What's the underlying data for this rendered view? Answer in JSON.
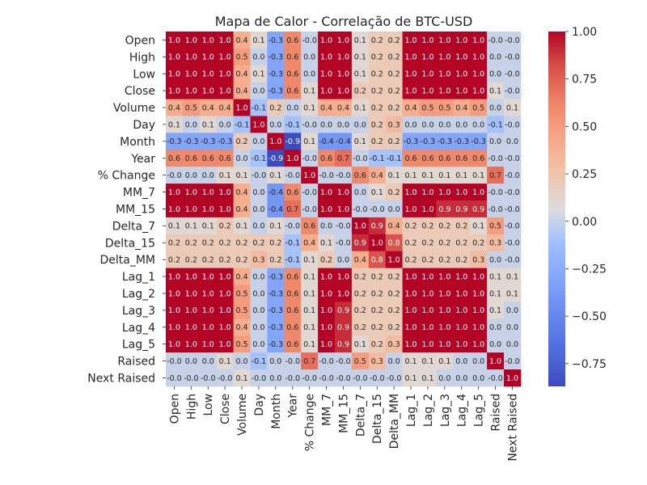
{
  "chart_data": {
    "type": "heatmap",
    "title": "Mapa de Calor - Correlação de BTC-USD",
    "xlabel": "",
    "ylabel": "",
    "labels": [
      "Open",
      "High",
      "Low",
      "Close",
      "Volume",
      "Day",
      "Month",
      "Year",
      "% Change",
      "MM_7",
      "MM_15",
      "Delta_7",
      "Delta_15",
      "Delta_MM",
      "Lag_1",
      "Lag_2",
      "Lag_3",
      "Lag_4",
      "Lag_5",
      "Raised",
      "Next Raised"
    ],
    "values": [
      [
        "1.0",
        "1.0",
        "1.0",
        "1.0",
        "0.4",
        "0.1",
        "-0.3",
        "0.6",
        "-0.0",
        "1.0",
        "1.0",
        "0.1",
        "0.2",
        "0.2",
        "1.0",
        "1.0",
        "1.0",
        "1.0",
        "1.0",
        "-0.0",
        "-0.0"
      ],
      [
        "1.0",
        "1.0",
        "1.0",
        "1.0",
        "0.5",
        "0.0",
        "-0.3",
        "0.6",
        "0.0",
        "1.0",
        "1.0",
        "0.1",
        "0.2",
        "0.2",
        "1.0",
        "1.0",
        "1.0",
        "1.0",
        "1.0",
        "0.0",
        "-0.0"
      ],
      [
        "1.0",
        "1.0",
        "1.0",
        "1.0",
        "0.4",
        "0.1",
        "-0.3",
        "0.6",
        "0.0",
        "1.0",
        "1.0",
        "0.1",
        "0.2",
        "0.2",
        "1.0",
        "1.0",
        "1.0",
        "1.0",
        "1.0",
        "0.0",
        "-0.0"
      ],
      [
        "1.0",
        "1.0",
        "1.0",
        "1.0",
        "0.4",
        "0.0",
        "-0.3",
        "0.6",
        "0.1",
        "1.0",
        "1.0",
        "0.2",
        "0.2",
        "0.2",
        "1.0",
        "1.0",
        "1.0",
        "1.0",
        "1.0",
        "0.1",
        "-0.0"
      ],
      [
        "0.4",
        "0.5",
        "0.4",
        "0.4",
        "1.0",
        "-0.1",
        "0.2",
        "0.0",
        "0.1",
        "0.4",
        "0.4",
        "0.1",
        "0.2",
        "0.2",
        "0.4",
        "0.5",
        "0.5",
        "0.4",
        "0.5",
        "0.0",
        "0.1"
      ],
      [
        "0.1",
        "0.0",
        "0.1",
        "0.0",
        "-0.1",
        "1.0",
        "0.0",
        "-0.1",
        "-0.0",
        "0.0",
        "0.0",
        "0.0",
        "0.2",
        "0.3",
        "0.0",
        "0.0",
        "0.0",
        "0.0",
        "0.0",
        "-0.1",
        "-0.0"
      ],
      [
        "-0.3",
        "-0.3",
        "-0.3",
        "-0.3",
        "0.2",
        "0.0",
        "1.0",
        "-0.9",
        "0.1",
        "-0.4",
        "-0.4",
        "0.1",
        "0.2",
        "0.2",
        "-0.3",
        "-0.3",
        "-0.3",
        "-0.3",
        "-0.3",
        "0.0",
        "0.0"
      ],
      [
        "0.6",
        "0.6",
        "0.6",
        "0.6",
        "0.0",
        "-0.1",
        "-0.9",
        "1.0",
        "-0.0",
        "0.6",
        "0.7",
        "-0.0",
        "-0.1",
        "-0.1",
        "0.6",
        "0.6",
        "0.6",
        "0.6",
        "0.6",
        "-0.0",
        "-0.0"
      ],
      [
        "-0.0",
        "0.0",
        "0.0",
        "0.1",
        "0.1",
        "-0.0",
        "0.1",
        "-0.0",
        "1.0",
        "-0.0",
        "-0.0",
        "0.6",
        "0.4",
        "0.1",
        "0.1",
        "0.1",
        "0.1",
        "0.1",
        "0.1",
        "0.7",
        "-0.0"
      ],
      [
        "1.0",
        "1.0",
        "1.0",
        "1.0",
        "0.4",
        "0.0",
        "-0.4",
        "0.6",
        "-0.0",
        "1.0",
        "1.0",
        "0.0",
        "0.1",
        "0.2",
        "1.0",
        "1.0",
        "1.0",
        "1.0",
        "1.0",
        "-0.0",
        "-0.0"
      ],
      [
        "1.0",
        "1.0",
        "1.0",
        "1.0",
        "0.4",
        "0.0",
        "-0.4",
        "0.7",
        "-0.0",
        "1.0",
        "1.0",
        "-0.0",
        "-0.0",
        "0.0",
        "1.0",
        "1.0",
        "0.9",
        "0.9",
        "0.9",
        "-0.0",
        "-0.0"
      ],
      [
        "0.1",
        "0.1",
        "0.1",
        "0.2",
        "0.1",
        "0.0",
        "0.1",
        "-0.0",
        "0.6",
        "0.0",
        "-0.0",
        "1.0",
        "0.9",
        "0.4",
        "0.2",
        "0.2",
        "0.2",
        "0.2",
        "0.1",
        "0.5",
        "-0.0"
      ],
      [
        "0.2",
        "0.2",
        "0.2",
        "0.2",
        "0.2",
        "0.2",
        "0.2",
        "-0.1",
        "0.4",
        "0.1",
        "-0.0",
        "0.9",
        "1.0",
        "0.8",
        "0.2",
        "0.2",
        "0.2",
        "0.2",
        "0.2",
        "0.3",
        "-0.0"
      ],
      [
        "0.2",
        "0.2",
        "0.2",
        "0.2",
        "0.2",
        "0.3",
        "0.2",
        "-0.1",
        "0.1",
        "0.2",
        "0.0",
        "0.4",
        "0.8",
        "1.0",
        "0.2",
        "0.2",
        "0.2",
        "0.2",
        "0.3",
        "0.0",
        "-0.0"
      ],
      [
        "1.0",
        "1.0",
        "1.0",
        "1.0",
        "0.4",
        "0.0",
        "-0.3",
        "0.6",
        "0.1",
        "1.0",
        "1.0",
        "0.2",
        "0.2",
        "0.2",
        "1.0",
        "1.0",
        "1.0",
        "1.0",
        "1.0",
        "0.1",
        "0.1"
      ],
      [
        "1.0",
        "1.0",
        "1.0",
        "1.0",
        "0.5",
        "0.0",
        "-0.3",
        "0.6",
        "0.1",
        "1.0",
        "1.0",
        "0.2",
        "0.2",
        "0.2",
        "1.0",
        "1.0",
        "1.0",
        "1.0",
        "1.0",
        "0.1",
        "0.1"
      ],
      [
        "1.0",
        "1.0",
        "1.0",
        "1.0",
        "0.5",
        "0.0",
        "-0.3",
        "0.6",
        "0.1",
        "1.0",
        "0.9",
        "0.2",
        "0.2",
        "0.2",
        "1.0",
        "1.0",
        "1.0",
        "1.0",
        "1.0",
        "0.1",
        "0.0"
      ],
      [
        "1.0",
        "1.0",
        "1.0",
        "1.0",
        "0.4",
        "0.0",
        "-0.3",
        "0.6",
        "0.1",
        "1.0",
        "0.9",
        "0.2",
        "0.2",
        "0.2",
        "1.0",
        "1.0",
        "1.0",
        "1.0",
        "1.0",
        "0.0",
        "0.0"
      ],
      [
        "1.0",
        "1.0",
        "1.0",
        "1.0",
        "0.5",
        "0.0",
        "-0.3",
        "0.6",
        "0.1",
        "1.0",
        "0.9",
        "0.1",
        "0.2",
        "0.3",
        "1.0",
        "1.0",
        "1.0",
        "1.0",
        "1.0",
        "0.0",
        "0.0"
      ],
      [
        "-0.0",
        "0.0",
        "0.0",
        "0.1",
        "0.0",
        "-0.1",
        "0.0",
        "-0.0",
        "0.7",
        "-0.0",
        "-0.0",
        "0.5",
        "0.3",
        "0.0",
        "0.1",
        "0.1",
        "0.1",
        "0.0",
        "0.0",
        "1.0",
        "-0.0"
      ],
      [
        "-0.0",
        "-0.0",
        "-0.0",
        "-0.0",
        "0.1",
        "-0.0",
        "0.0",
        "-0.0",
        "-0.0",
        "-0.0",
        "-0.0",
        "-0.0",
        "-0.0",
        "-0.0",
        "0.1",
        "0.1",
        "0.0",
        "0.0",
        "0.0",
        "-0.0",
        "1.0"
      ]
    ],
    "colormap": "coolwarm",
    "vmin": -0.87,
    "vmax": 1.0,
    "colorbar_ticks": [
      "1.00",
      "0.75",
      "0.50",
      "0.25",
      "0.00",
      "−0.25",
      "−0.50",
      "−0.75"
    ],
    "grid": false,
    "legend": "colorbar-right"
  }
}
